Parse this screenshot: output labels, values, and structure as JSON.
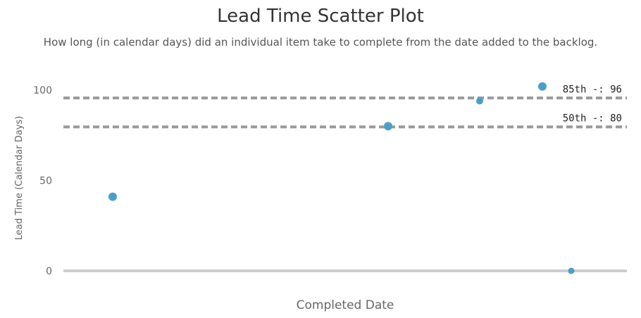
{
  "chart_data": {
    "type": "scatter",
    "title": "Lead Time Scatter Plot",
    "subtitle": "How long (in calendar days) did an individual item take to complete from the date added to the backlog.",
    "xlabel": "Completed Date",
    "ylabel": "Lead Time (Calendar Days)",
    "ylim": [
      0,
      100
    ],
    "yticks": [
      "0",
      "50",
      "100"
    ],
    "grid": false,
    "points": [
      {
        "x": 1,
        "y": 41
      },
      {
        "x": 2,
        "y": 80
      },
      {
        "x": 3,
        "y": 94
      },
      {
        "x": 4,
        "y": 102
      },
      {
        "x": 5,
        "y": 0
      }
    ],
    "reference_lines": [
      {
        "label": "85th -: 96",
        "value": 96
      },
      {
        "label": "50th -: 80",
        "value": 80
      }
    ],
    "colors": {
      "points": "#4a9fc9",
      "reference_lines": "#999999",
      "baseline": "#cccccc"
    }
  }
}
